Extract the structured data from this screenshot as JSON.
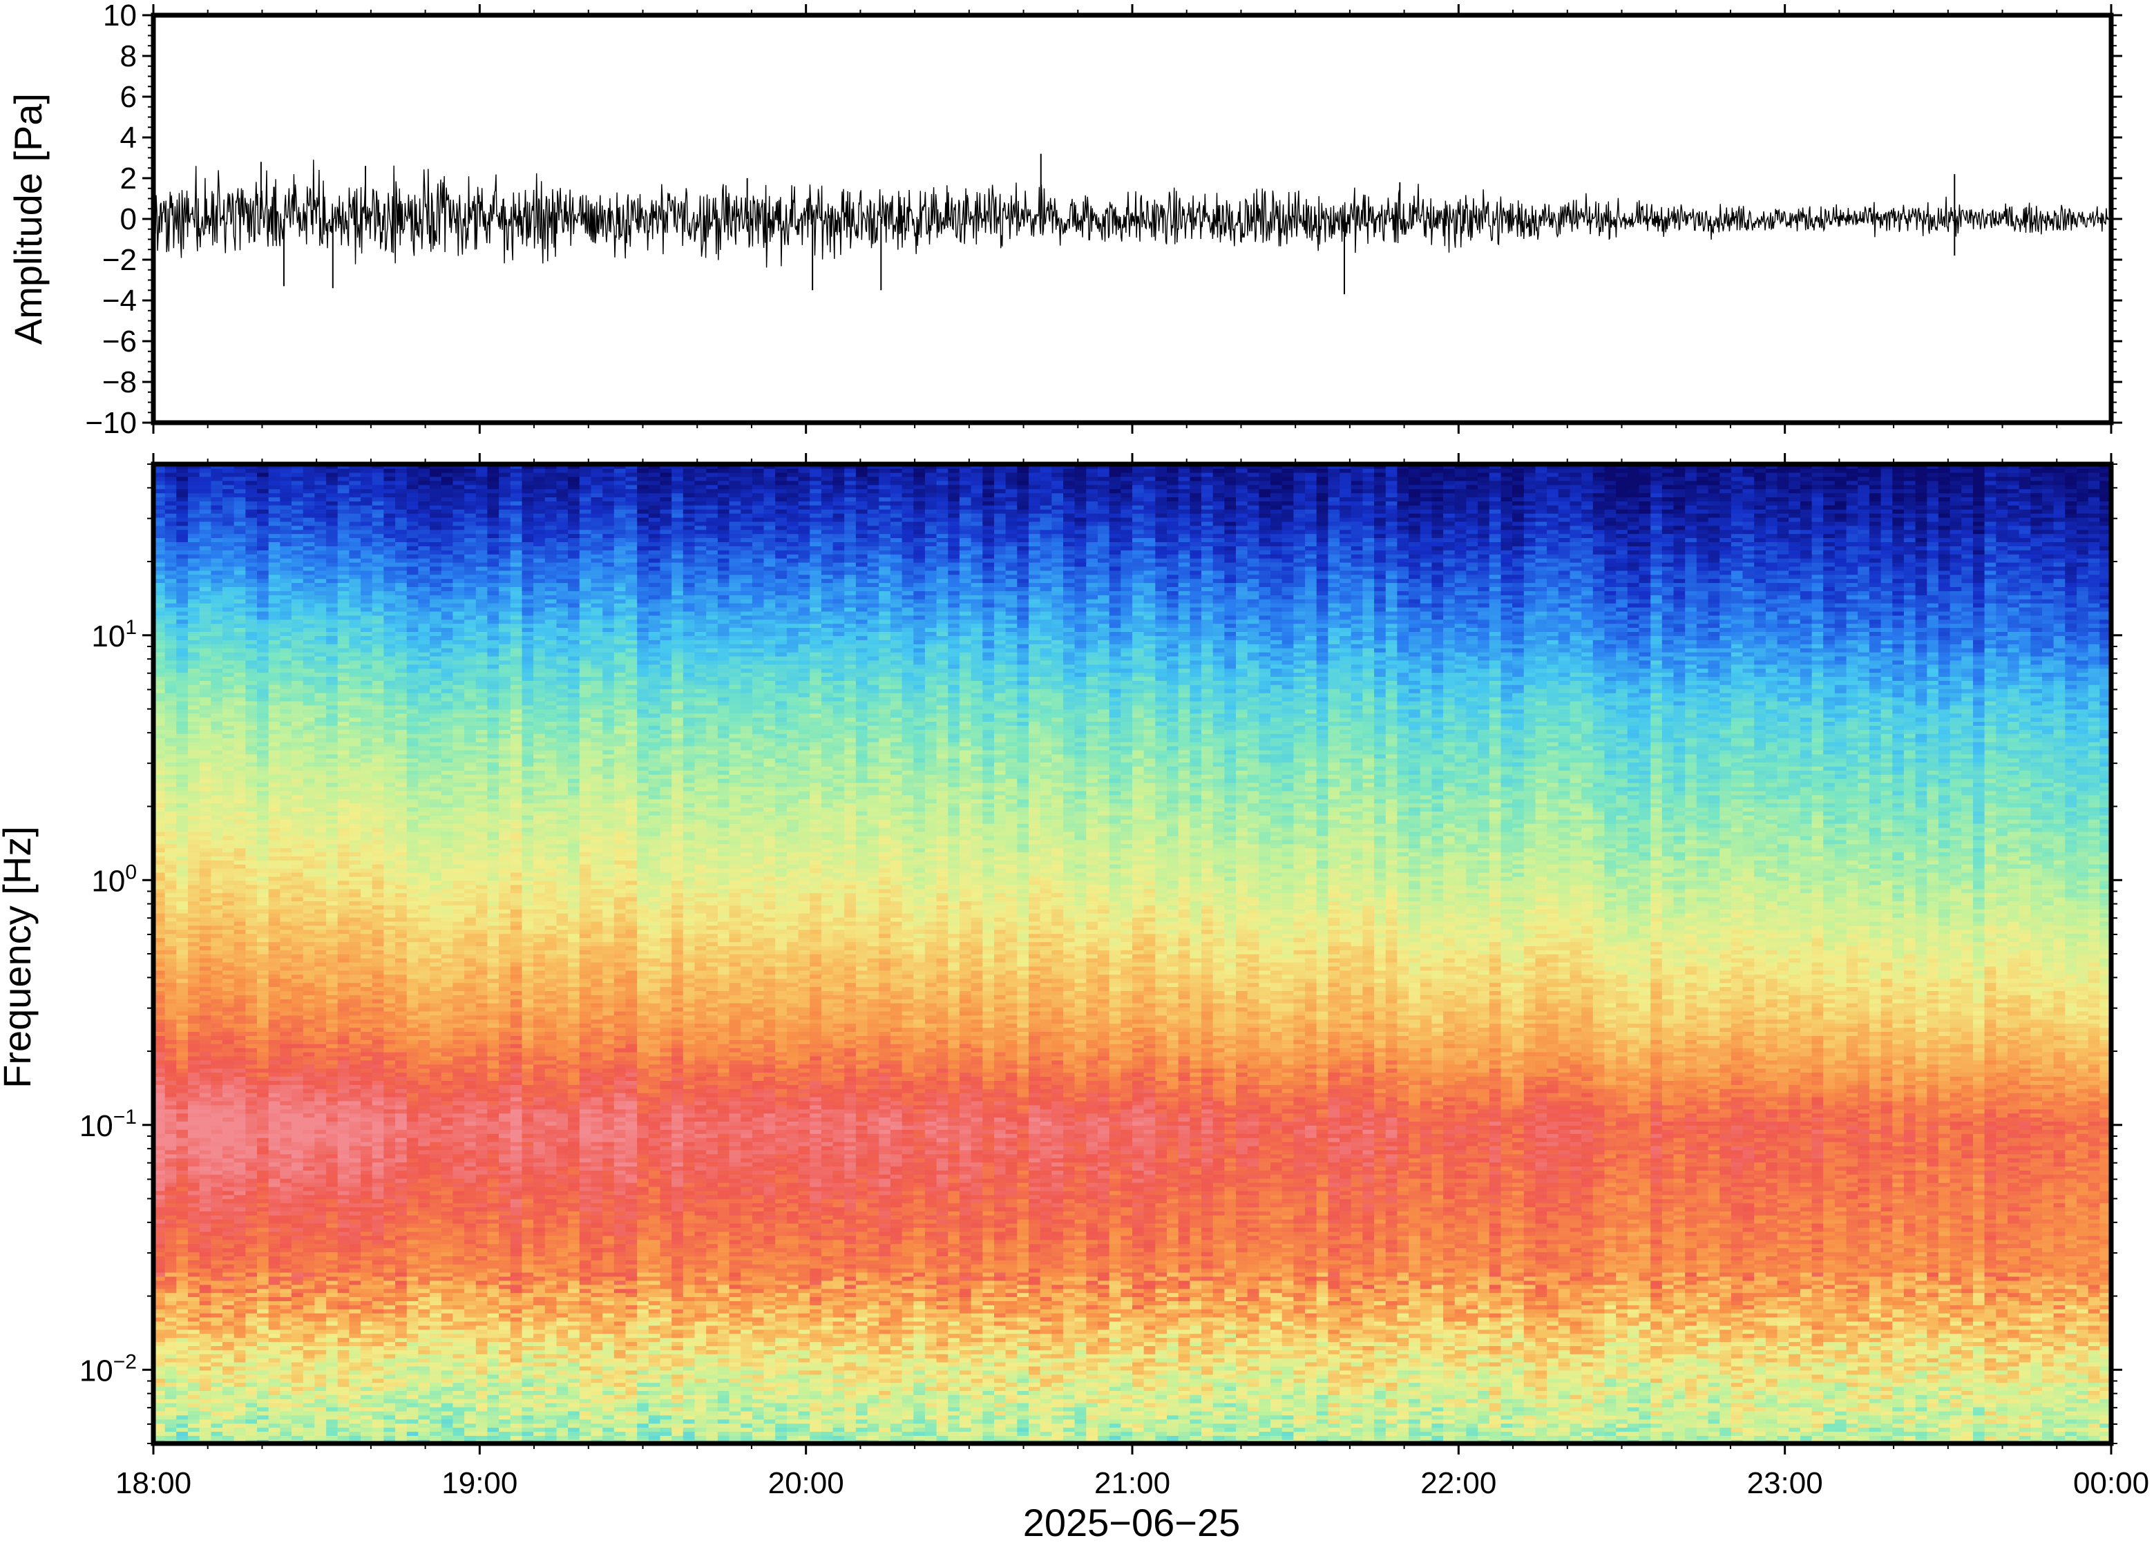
{
  "chart_data": [
    {
      "type": "line",
      "name": "waveform",
      "ylabel": "Amplitude [Pa]",
      "ylim": [
        -10,
        10
      ],
      "yticks": [
        10,
        8,
        6,
        4,
        2,
        0,
        -2,
        -4,
        -6,
        -8,
        -10
      ],
      "ytick_labels": [
        "10",
        "8",
        "6",
        "4",
        "2",
        "0",
        "−2",
        "−4",
        "−6",
        "−8",
        "−10"
      ],
      "x_range_hours": [
        18,
        24
      ],
      "trace_color": "#000000",
      "envelope": {
        "hours": [
          18.0,
          18.5,
          19.0,
          19.5,
          20.0,
          20.5,
          21.0,
          21.5,
          22.0,
          22.5,
          23.0,
          23.5,
          24.0
        ],
        "amplitude_pa": [
          1.6,
          1.7,
          1.5,
          1.4,
          1.3,
          1.2,
          1.0,
          1.1,
          1.1,
          0.6,
          0.5,
          0.6,
          0.5
        ]
      },
      "spikes": [
        {
          "hour": 18.33,
          "value": 2.8
        },
        {
          "hour": 18.4,
          "value": -3.3
        },
        {
          "hour": 18.55,
          "value": -3.4
        },
        {
          "hour": 18.65,
          "value": 2.6
        },
        {
          "hour": 19.82,
          "value": 2.0
        },
        {
          "hour": 20.02,
          "value": -3.5
        },
        {
          "hour": 20.23,
          "value": -3.5
        },
        {
          "hour": 20.72,
          "value": 3.2
        },
        {
          "hour": 21.65,
          "value": -3.7
        },
        {
          "hour": 21.82,
          "value": 1.8
        },
        {
          "hour": 23.52,
          "value": 2.2
        },
        {
          "hour": 23.52,
          "value": -1.8
        }
      ]
    },
    {
      "type": "heatmap",
      "name": "spectrogram",
      "ylabel": "Frequency [Hz]",
      "yscale": "log",
      "ylim": [
        0.005,
        50
      ],
      "yticks": [
        {
          "value": 0.01,
          "base": "10",
          "exp": "−2"
        },
        {
          "value": 0.1,
          "base": "10",
          "exp": "−1"
        },
        {
          "value": 1,
          "base": "10",
          "exp": "0"
        },
        {
          "value": 10,
          "base": "10",
          "exp": "1"
        }
      ],
      "xlabel": "2025−06−25",
      "xlim_hours": [
        18,
        24
      ],
      "xtick_labels": [
        "18:00",
        "19:00",
        "20:00",
        "21:00",
        "22:00",
        "23:00",
        "00:00"
      ],
      "colormap": [
        "#0a0a70",
        "#1530c8",
        "#2a7ef0",
        "#46c8f0",
        "#7ae6c2",
        "#c4f29a",
        "#f2ee8a",
        "#f8c060",
        "#f89048",
        "#f05a50",
        "#f28a90"
      ],
      "power_model": {
        "log10_frequency": [
          -2.3,
          -2.0,
          -1.6,
          -1.0,
          -0.6,
          0.0,
          0.7,
          1.0,
          1.45,
          1.7
        ],
        "level_at_18h": [
          0.45,
          0.58,
          0.83,
          1.0,
          0.82,
          0.63,
          0.45,
          0.34,
          0.14,
          0.06
        ],
        "level_at_24h": [
          0.5,
          0.6,
          0.8,
          0.86,
          0.66,
          0.46,
          0.3,
          0.18,
          0.06,
          0.0
        ]
      }
    }
  ]
}
